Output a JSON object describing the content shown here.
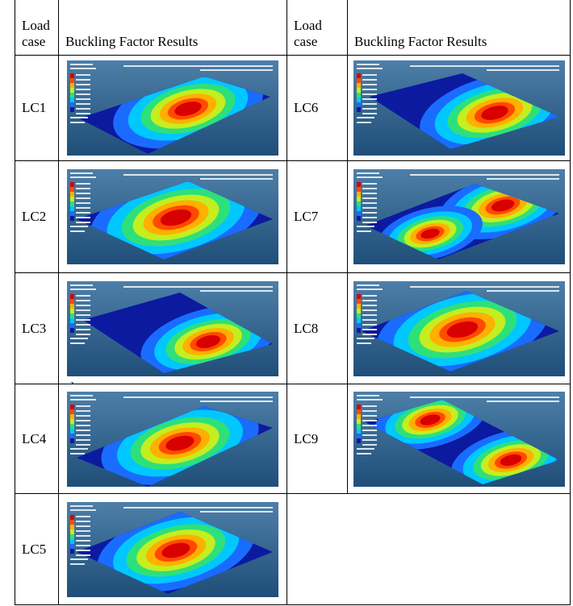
{
  "table": {
    "header": [
      "Load case",
      "Buckling Factor Results",
      "Load case",
      "Buckling Factor Results"
    ],
    "rows": [
      [
        "LC1",
        "LC6"
      ],
      [
        "LC2",
        "LC7"
      ],
      [
        "LC3",
        "LC8"
      ],
      [
        "LC4",
        "LC9"
      ],
      [
        "LC5"
      ]
    ],
    "stray_mark": "`"
  }
}
